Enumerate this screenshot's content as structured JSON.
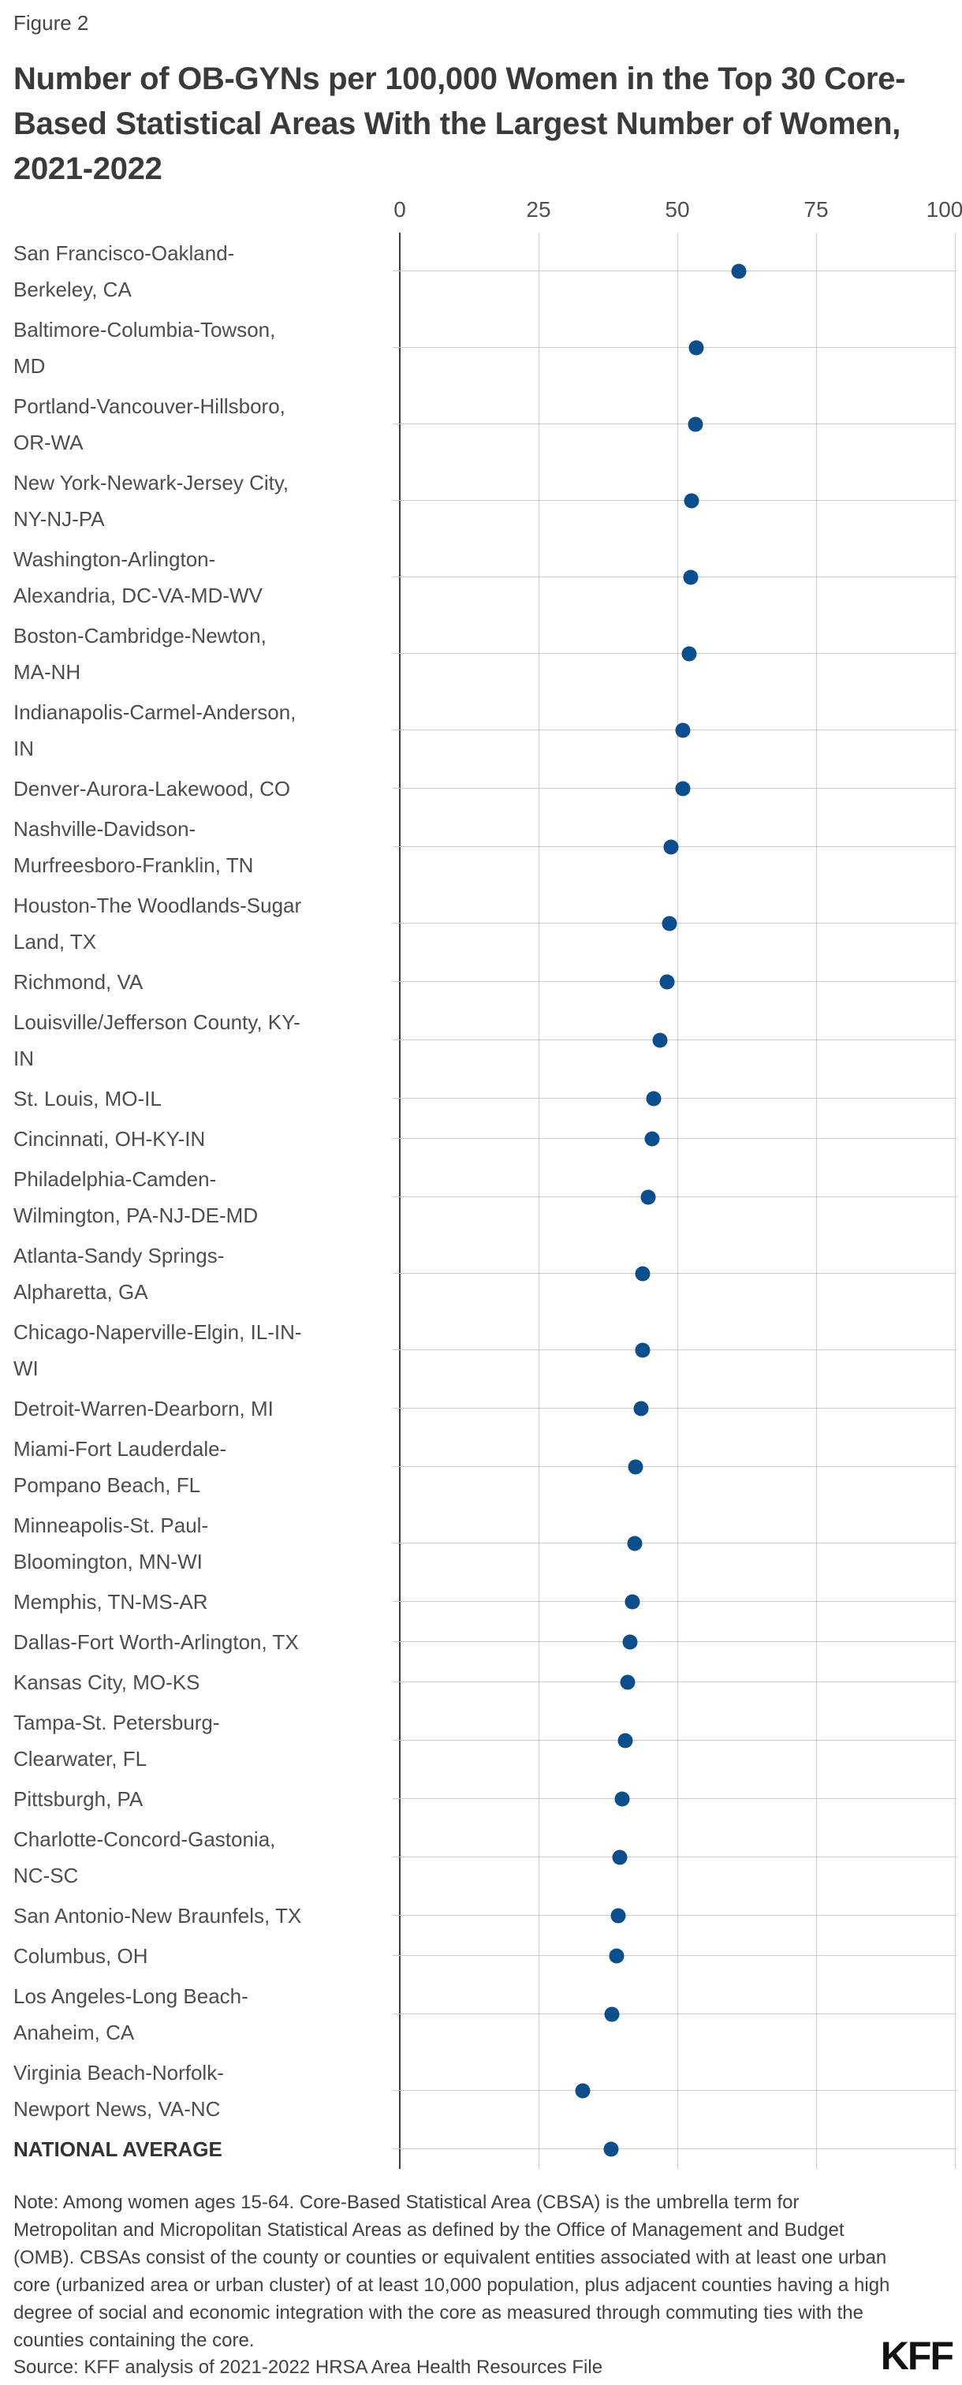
{
  "figure_label": "Figure 2",
  "title": "Number of OB-GYNs per 100,000 Women in the Top 30 Core-Based Statistical Areas With the Largest Number of Women, 2021-2022",
  "chart_data": {
    "type": "scatter",
    "subtype": "horizontal-dot-plot",
    "xlabel": "OB-GYNs per 100,000 women",
    "ylabel": "Core-Based Statistical Area",
    "xlim": [
      0,
      100
    ],
    "x_ticks": [
      0,
      25,
      50,
      75,
      100
    ],
    "grid": true,
    "legend": "none",
    "dot_color": "#0C4D8C",
    "gridline_color": "#cccccc",
    "zero_axis_color": "#3c3c3c",
    "rows": [
      {
        "label": "San Francisco-Oakland-Berkeley, CA",
        "label_lines": [
          "San Francisco-Oakland-",
          "Berkeley, CA"
        ],
        "value": 61.1
      },
      {
        "label": "Baltimore-Columbia-Towson, MD",
        "label_lines": [
          "Baltimore-Columbia-Towson,",
          "MD"
        ],
        "value": 53.4
      },
      {
        "label": "Portland-Vancouver-Hillsboro, OR-WA",
        "label_lines": [
          "Portland-Vancouver-Hillsboro,",
          "OR-WA"
        ],
        "value": 53.3
      },
      {
        "label": "New York-Newark-Jersey City, NY-NJ-PA",
        "label_lines": [
          "New York-Newark-Jersey City,",
          "NY-NJ-PA"
        ],
        "value": 52.5
      },
      {
        "label": "Washington-Arlington-Alexandria, DC-VA-MD-WV",
        "label_lines": [
          "Washington-Arlington-",
          "Alexandria, DC-VA-MD-WV"
        ],
        "value": 52.4
      },
      {
        "label": "Boston-Cambridge-Newton, MA-NH",
        "label_lines": [
          "Boston-Cambridge-Newton,",
          "MA-NH"
        ],
        "value": 52.2
      },
      {
        "label": "Indianapolis-Carmel-Anderson, IN",
        "label_lines": [
          "Indianapolis-Carmel-Anderson,",
          "IN"
        ],
        "value": 51.0
      },
      {
        "label": "Denver-Aurora-Lakewood, CO",
        "label_lines": [
          "Denver-Aurora-Lakewood, CO"
        ],
        "value": 51.0
      },
      {
        "label": "Nashville-Davidson-Murfreesboro-Franklin, TN",
        "label_lines": [
          "Nashville-Davidson-",
          "Murfreesboro-Franklin, TN"
        ],
        "value": 48.8
      },
      {
        "label": "Houston-The Woodlands-Sugar Land, TX",
        "label_lines": [
          "Houston-The Woodlands-Sugar",
          "Land, TX"
        ],
        "value": 48.6
      },
      {
        "label": "Richmond, VA",
        "label_lines": [
          "Richmond, VA"
        ],
        "value": 48.1
      },
      {
        "label": "Louisville/Jefferson County, KY-IN",
        "label_lines": [
          "Louisville/Jefferson County, KY-",
          "IN"
        ],
        "value": 46.9
      },
      {
        "label": "St. Louis, MO-IL",
        "label_lines": [
          "St. Louis, MO-IL"
        ],
        "value": 45.8
      },
      {
        "label": "Cincinnati, OH-KY-IN",
        "label_lines": [
          "Cincinnati, OH-KY-IN"
        ],
        "value": 45.4
      },
      {
        "label": "Philadelphia-Camden-Wilmington, PA-NJ-DE-MD",
        "label_lines": [
          "Philadelphia-Camden-",
          "Wilmington, PA-NJ-DE-MD"
        ],
        "value": 44.7
      },
      {
        "label": "Atlanta-Sandy Springs-Alpharetta, GA",
        "label_lines": [
          "Atlanta-Sandy Springs-",
          "Alpharetta, GA"
        ],
        "value": 43.8
      },
      {
        "label": "Chicago-Naperville-Elgin, IL-IN-WI",
        "label_lines": [
          "Chicago-Naperville-Elgin, IL-IN-",
          "WI"
        ],
        "value": 43.8
      },
      {
        "label": "Detroit-Warren-Dearborn, MI",
        "label_lines": [
          "Detroit-Warren-Dearborn, MI"
        ],
        "value": 43.4
      },
      {
        "label": "Miami-Fort Lauderdale-Pompano Beach, FL",
        "label_lines": [
          "Miami-Fort Lauderdale-",
          "Pompano Beach, FL"
        ],
        "value": 42.5
      },
      {
        "label": "Minneapolis-St. Paul-Bloomington, MN-WI",
        "label_lines": [
          "Minneapolis-St. Paul-",
          "Bloomington, MN-WI"
        ],
        "value": 42.3
      },
      {
        "label": "Memphis, TN-MS-AR",
        "label_lines": [
          "Memphis, TN-MS-AR"
        ],
        "value": 41.9
      },
      {
        "label": "Dallas-Fort Worth-Arlington, TX",
        "label_lines": [
          "Dallas-Fort Worth-Arlington, TX"
        ],
        "value": 41.5
      },
      {
        "label": "Kansas City, MO-KS",
        "label_lines": [
          "Kansas City, MO-KS"
        ],
        "value": 41.0
      },
      {
        "label": "Tampa-St. Petersburg-Clearwater, FL",
        "label_lines": [
          "Tampa-St. Petersburg-",
          "Clearwater, FL"
        ],
        "value": 40.6
      },
      {
        "label": "Pittsburgh, PA",
        "label_lines": [
          "Pittsburgh, PA"
        ],
        "value": 40.0
      },
      {
        "label": "Charlotte-Concord-Gastonia, NC-SC",
        "label_lines": [
          "Charlotte-Concord-Gastonia,",
          "NC-SC"
        ],
        "value": 39.6
      },
      {
        "label": "San Antonio-New Braunfels, TX",
        "label_lines": [
          "San Antonio-New Braunfels, TX"
        ],
        "value": 39.4
      },
      {
        "label": "Columbus, OH",
        "label_lines": [
          "Columbus, OH"
        ],
        "value": 39.1
      },
      {
        "label": "Los Angeles-Long Beach-Anaheim, CA",
        "label_lines": [
          "Los Angeles-Long Beach-",
          "Anaheim, CA"
        ],
        "value": 38.2
      },
      {
        "label": "Virginia Beach-Norfolk-Newport News, VA-NC",
        "label_lines": [
          "Virginia Beach-Norfolk-",
          "Newport News, VA-NC"
        ],
        "value": 32.9
      },
      {
        "label": "NATIONAL AVERAGE",
        "label_lines": [
          "NATIONAL AVERAGE"
        ],
        "value": 38.0,
        "emphasis": true
      }
    ]
  },
  "note": "Note: Among women ages 15-64. Core-Based Statistical Area (CBSA) is the umbrella term for Metropolitan and Micropolitan Statistical Areas as defined by the Office of Management and Budget (OMB). CBSAs consist of the county or counties or equivalent entities associated with at least one urban core (urbanized area or urban cluster) of at least 10,000 population, plus adjacent counties having a high degree of social and economic integration with the core as measured through commuting ties with the counties containing the core.",
  "source": "Source: KFF analysis of 2021-2022 HRSA Area Health Resources File",
  "logo_text": "KFF"
}
